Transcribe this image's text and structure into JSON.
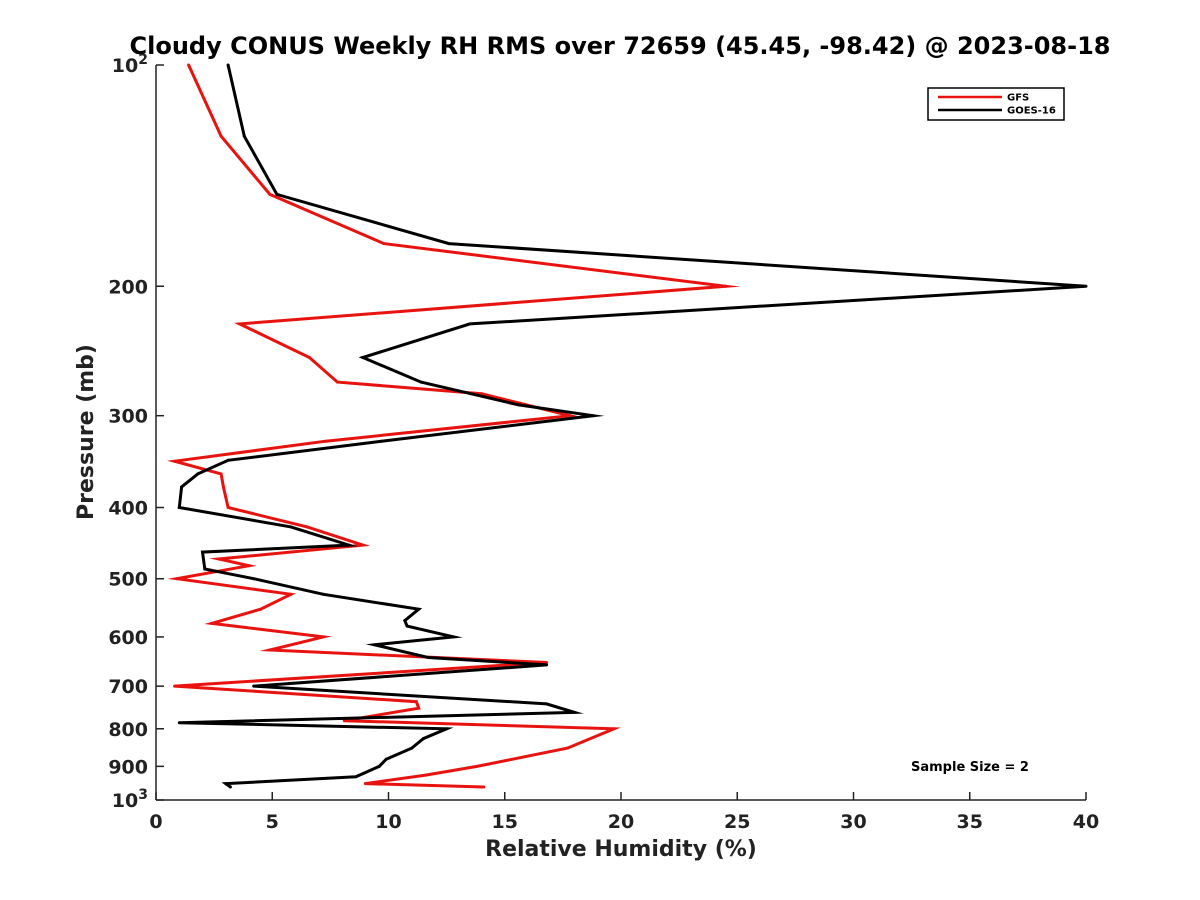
{
  "chart_data": {
    "type": "line",
    "title": "Cloudy CONUS Weekly RH RMS over 72659 (45.45, -98.42) @ 2023-08-18",
    "xlabel": "Relative Humidity (%)",
    "ylabel": "Pressure (mb)",
    "xlim": [
      0,
      40
    ],
    "ylim": [
      100,
      1000
    ],
    "y_scale": "log",
    "y_reversed": true,
    "grid": false,
    "legend_position": "top-right",
    "x_ticks": [
      "0",
      "5",
      "10",
      "15",
      "20",
      "25",
      "30",
      "35",
      "40"
    ],
    "y_ticks": [
      {
        "value": 100,
        "base": "10",
        "exp": "2"
      },
      {
        "value": 200,
        "label": "200"
      },
      {
        "value": 300,
        "label": "300"
      },
      {
        "value": 400,
        "label": "400"
      },
      {
        "value": 500,
        "label": "500"
      },
      {
        "value": 600,
        "label": "600"
      },
      {
        "value": 700,
        "label": "700"
      },
      {
        "value": 800,
        "label": "800"
      },
      {
        "value": 900,
        "label": "900"
      },
      {
        "value": 1000,
        "base": "10",
        "exp": "3"
      }
    ],
    "annotation": "Sample Size = 2",
    "series": [
      {
        "name": "GFS",
        "color": "#e8130f",
        "points": [
          [
            1.4,
            100
          ],
          [
            2.8,
            125
          ],
          [
            4.9,
            150
          ],
          [
            9.8,
            175
          ],
          [
            24.5,
            200
          ],
          [
            3.6,
            225
          ],
          [
            6.6,
            250
          ],
          [
            7.8,
            270
          ],
          [
            14.0,
            280
          ],
          [
            17.8,
            300
          ],
          [
            7.3,
            325
          ],
          [
            0.8,
            346
          ],
          [
            2.8,
            360
          ],
          [
            2.9,
            375
          ],
          [
            3.1,
            400
          ],
          [
            6.5,
            425
          ],
          [
            8.9,
            450
          ],
          [
            2.7,
            470
          ],
          [
            4.0,
            480
          ],
          [
            0.9,
            500
          ],
          [
            5.8,
            525
          ],
          [
            4.5,
            550
          ],
          [
            2.4,
            575
          ],
          [
            7.2,
            600
          ],
          [
            4.9,
            625
          ],
          [
            16.8,
            650
          ],
          [
            0.8,
            700
          ],
          [
            11.2,
            735
          ],
          [
            11.3,
            750
          ],
          [
            8.1,
            780
          ],
          [
            19.7,
            800
          ],
          [
            17.7,
            850
          ],
          [
            13.8,
            900
          ],
          [
            11.6,
            925
          ],
          [
            9.0,
            950
          ],
          [
            14.1,
            960
          ]
        ]
      },
      {
        "name": "GOES-16",
        "color": "#000000",
        "points": [
          [
            3.1,
            100
          ],
          [
            3.8,
            125
          ],
          [
            5.2,
            150
          ],
          [
            12.6,
            175
          ],
          [
            40.0,
            200
          ],
          [
            13.5,
            225
          ],
          [
            8.9,
            250
          ],
          [
            11.4,
            270
          ],
          [
            15.6,
            290
          ],
          [
            18.8,
            300
          ],
          [
            9.7,
            325
          ],
          [
            3.1,
            345
          ],
          [
            1.8,
            360
          ],
          [
            1.1,
            375
          ],
          [
            1.0,
            400
          ],
          [
            5.8,
            425
          ],
          [
            8.3,
            450
          ],
          [
            2.0,
            460
          ],
          [
            2.1,
            485
          ],
          [
            4.2,
            500
          ],
          [
            7.2,
            525
          ],
          [
            11.3,
            550
          ],
          [
            10.7,
            570
          ],
          [
            10.8,
            580
          ],
          [
            12.8,
            600
          ],
          [
            9.4,
            615
          ],
          [
            11.7,
            640
          ],
          [
            16.8,
            655
          ],
          [
            4.2,
            700
          ],
          [
            16.8,
            740
          ],
          [
            18.0,
            760
          ],
          [
            1.0,
            785
          ],
          [
            12.5,
            800
          ],
          [
            11.5,
            825
          ],
          [
            11.0,
            850
          ],
          [
            9.9,
            880
          ],
          [
            9.6,
            900
          ],
          [
            8.6,
            930
          ],
          [
            3.0,
            950
          ],
          [
            3.2,
            960
          ]
        ]
      }
    ]
  }
}
